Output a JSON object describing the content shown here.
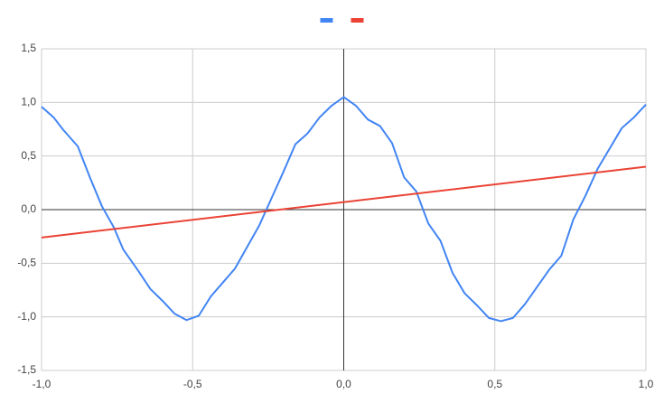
{
  "chart_data": {
    "type": "line",
    "series": [
      {
        "color": "#4285f4",
        "x": [
          -1.0,
          -0.96,
          -0.93,
          -0.88,
          -0.84,
          -0.8,
          -0.76,
          -0.73,
          -0.68,
          -0.64,
          -0.6,
          -0.56,
          -0.52,
          -0.48,
          -0.44,
          -0.4,
          -0.36,
          -0.32,
          -0.28,
          -0.24,
          -0.2,
          -0.16,
          -0.12,
          -0.08,
          -0.04,
          0.0,
          0.04,
          0.08,
          0.12,
          0.16,
          0.2,
          0.24,
          0.28,
          0.32,
          0.36,
          0.4,
          0.44,
          0.48,
          0.52,
          0.56,
          0.6,
          0.64,
          0.68,
          0.72,
          0.76,
          0.8,
          0.84,
          0.88,
          0.92,
          0.96,
          1.0
        ],
        "values": [
          0.96,
          0.86,
          0.75,
          0.59,
          0.3,
          0.03,
          -0.17,
          -0.37,
          -0.57,
          -0.74,
          -0.85,
          -0.97,
          -1.03,
          -0.99,
          -0.81,
          -0.68,
          -0.55,
          -0.35,
          -0.15,
          0.1,
          0.35,
          0.61,
          0.71,
          0.86,
          0.97,
          1.05,
          0.97,
          0.84,
          0.78,
          0.62,
          0.3,
          0.17,
          -0.13,
          -0.29,
          -0.59,
          -0.78,
          -0.89,
          -1.01,
          -1.04,
          -1.01,
          -0.88,
          -0.72,
          -0.56,
          -0.43,
          -0.09,
          0.13,
          0.38,
          0.57,
          0.76,
          0.86,
          0.98
        ]
      },
      {
        "color": "#ea4335",
        "x": [
          -1.0,
          1.0
        ],
        "values": [
          -0.26,
          0.4
        ]
      }
    ],
    "xlim": [
      -1.0,
      1.0
    ],
    "xticks": [
      {
        "value": -1.0,
        "label": "-1,0"
      },
      {
        "value": -0.5,
        "label": "-0,5"
      },
      {
        "value": 0.0,
        "label": "0,0"
      },
      {
        "value": 0.5,
        "label": "0,5"
      },
      {
        "value": 1.0,
        "label": "1,0"
      }
    ],
    "ylim": [
      -1.5,
      1.5
    ],
    "yticks": [
      {
        "value": -1.5,
        "label": "-1,5"
      },
      {
        "value": -1.0,
        "label": "-1,0"
      },
      {
        "value": -0.5,
        "label": "-0,5"
      },
      {
        "value": 0.0,
        "label": "0,0"
      },
      {
        "value": 0.5,
        "label": "0,5"
      },
      {
        "value": 1.0,
        "label": "1,0"
      },
      {
        "value": 1.5,
        "label": "1,5"
      }
    ],
    "grid": true
  }
}
